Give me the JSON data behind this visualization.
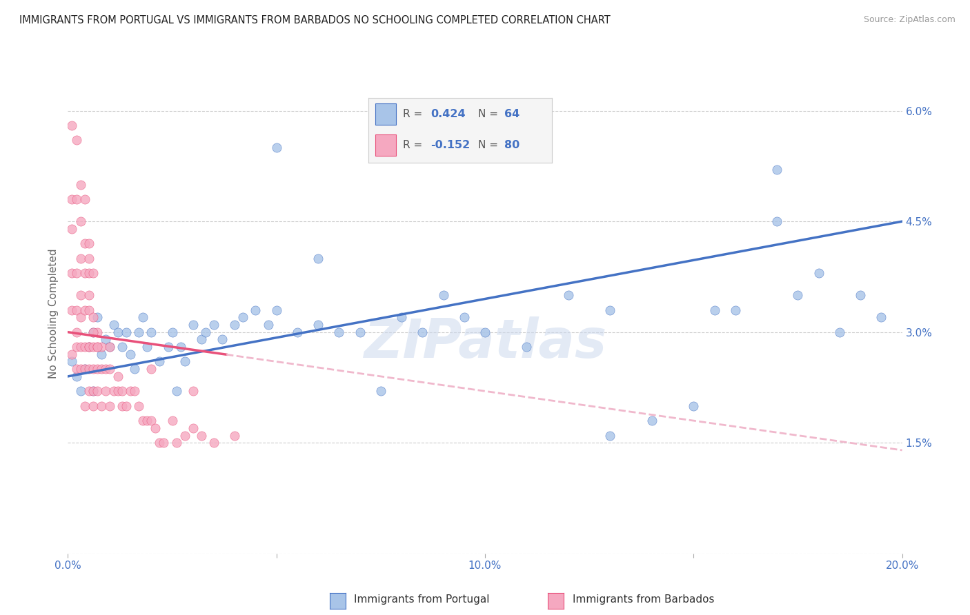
{
  "title": "IMMIGRANTS FROM PORTUGAL VS IMMIGRANTS FROM BARBADOS NO SCHOOLING COMPLETED CORRELATION CHART",
  "source": "Source: ZipAtlas.com",
  "ylabel": "No Schooling Completed",
  "x_min": 0.0,
  "x_max": 0.2,
  "y_min": 0.0,
  "y_max": 0.065,
  "y_ticks": [
    0.0,
    0.015,
    0.03,
    0.045,
    0.06
  ],
  "y_tick_labels": [
    "",
    "1.5%",
    "3.0%",
    "4.5%",
    "6.0%"
  ],
  "x_ticks": [
    0.0,
    0.05,
    0.1,
    0.15,
    0.2
  ],
  "x_tick_labels": [
    "0.0%",
    "",
    "10.0%",
    "",
    "20.0%"
  ],
  "legend_R_portugal": "0.424",
  "legend_N_portugal": "64",
  "legend_R_barbados": "-0.152",
  "legend_N_barbados": "80",
  "portugal_color": "#a8c4e8",
  "barbados_color": "#f5a8c0",
  "trend_portugal_color": "#4472c4",
  "trend_barbados_color": "#e8507a",
  "trend_barbados_dashed_color": "#f0b8cc",
  "watermark": "ZIPatlas",
  "background_color": "#ffffff",
  "portugal_scatter_x": [
    0.001,
    0.002,
    0.003,
    0.004,
    0.005,
    0.006,
    0.006,
    0.007,
    0.008,
    0.009,
    0.01,
    0.011,
    0.012,
    0.013,
    0.014,
    0.015,
    0.016,
    0.017,
    0.018,
    0.019,
    0.02,
    0.022,
    0.024,
    0.025,
    0.026,
    0.027,
    0.028,
    0.03,
    0.032,
    0.033,
    0.035,
    0.037,
    0.04,
    0.042,
    0.045,
    0.048,
    0.05,
    0.055,
    0.06,
    0.065,
    0.07,
    0.075,
    0.08,
    0.085,
    0.09,
    0.095,
    0.1,
    0.11,
    0.12,
    0.13,
    0.14,
    0.15,
    0.155,
    0.16,
    0.17,
    0.175,
    0.18,
    0.185,
    0.19,
    0.195,
    0.05,
    0.06,
    0.13,
    0.17
  ],
  "portugal_scatter_y": [
    0.026,
    0.024,
    0.022,
    0.025,
    0.028,
    0.03,
    0.022,
    0.032,
    0.027,
    0.029,
    0.028,
    0.031,
    0.03,
    0.028,
    0.03,
    0.027,
    0.025,
    0.03,
    0.032,
    0.028,
    0.03,
    0.026,
    0.028,
    0.03,
    0.022,
    0.028,
    0.026,
    0.031,
    0.029,
    0.03,
    0.031,
    0.029,
    0.031,
    0.032,
    0.033,
    0.031,
    0.033,
    0.03,
    0.031,
    0.03,
    0.03,
    0.022,
    0.032,
    0.03,
    0.035,
    0.032,
    0.03,
    0.028,
    0.035,
    0.033,
    0.018,
    0.02,
    0.033,
    0.033,
    0.052,
    0.035,
    0.038,
    0.03,
    0.035,
    0.032,
    0.055,
    0.04,
    0.016,
    0.045
  ],
  "barbados_scatter_x": [
    0.001,
    0.001,
    0.001,
    0.001,
    0.002,
    0.002,
    0.002,
    0.002,
    0.002,
    0.003,
    0.003,
    0.003,
    0.003,
    0.003,
    0.004,
    0.004,
    0.004,
    0.004,
    0.004,
    0.005,
    0.005,
    0.005,
    0.005,
    0.005,
    0.005,
    0.006,
    0.006,
    0.006,
    0.006,
    0.006,
    0.006,
    0.007,
    0.007,
    0.007,
    0.007,
    0.008,
    0.008,
    0.008,
    0.009,
    0.009,
    0.01,
    0.01,
    0.01,
    0.011,
    0.012,
    0.012,
    0.013,
    0.013,
    0.014,
    0.015,
    0.016,
    0.017,
    0.018,
    0.019,
    0.02,
    0.021,
    0.022,
    0.023,
    0.025,
    0.026,
    0.028,
    0.03,
    0.032,
    0.035,
    0.001,
    0.001,
    0.002,
    0.002,
    0.003,
    0.003,
    0.004,
    0.004,
    0.005,
    0.005,
    0.005,
    0.006,
    0.007,
    0.02,
    0.03,
    0.04
  ],
  "barbados_scatter_y": [
    0.027,
    0.033,
    0.038,
    0.044,
    0.028,
    0.033,
    0.038,
    0.025,
    0.03,
    0.025,
    0.028,
    0.035,
    0.04,
    0.032,
    0.028,
    0.033,
    0.038,
    0.025,
    0.02,
    0.028,
    0.033,
    0.038,
    0.028,
    0.022,
    0.025,
    0.032,
    0.038,
    0.025,
    0.028,
    0.02,
    0.022,
    0.03,
    0.025,
    0.028,
    0.022,
    0.025,
    0.028,
    0.02,
    0.025,
    0.022,
    0.028,
    0.025,
    0.02,
    0.022,
    0.022,
    0.024,
    0.022,
    0.02,
    0.02,
    0.022,
    0.022,
    0.02,
    0.018,
    0.018,
    0.018,
    0.017,
    0.015,
    0.015,
    0.018,
    0.015,
    0.016,
    0.017,
    0.016,
    0.015,
    0.048,
    0.058,
    0.048,
    0.056,
    0.045,
    0.05,
    0.042,
    0.048,
    0.04,
    0.035,
    0.042,
    0.03,
    0.028,
    0.025,
    0.022,
    0.016
  ],
  "barbados_trend_end_x": 0.038,
  "trend_line_start_x": 0.0,
  "trend_line_end_x": 0.2,
  "portugal_trend_start_y": 0.024,
  "portugal_trend_end_y": 0.045,
  "barbados_trend_start_y": 0.03,
  "barbados_trend_end_y": 0.014
}
